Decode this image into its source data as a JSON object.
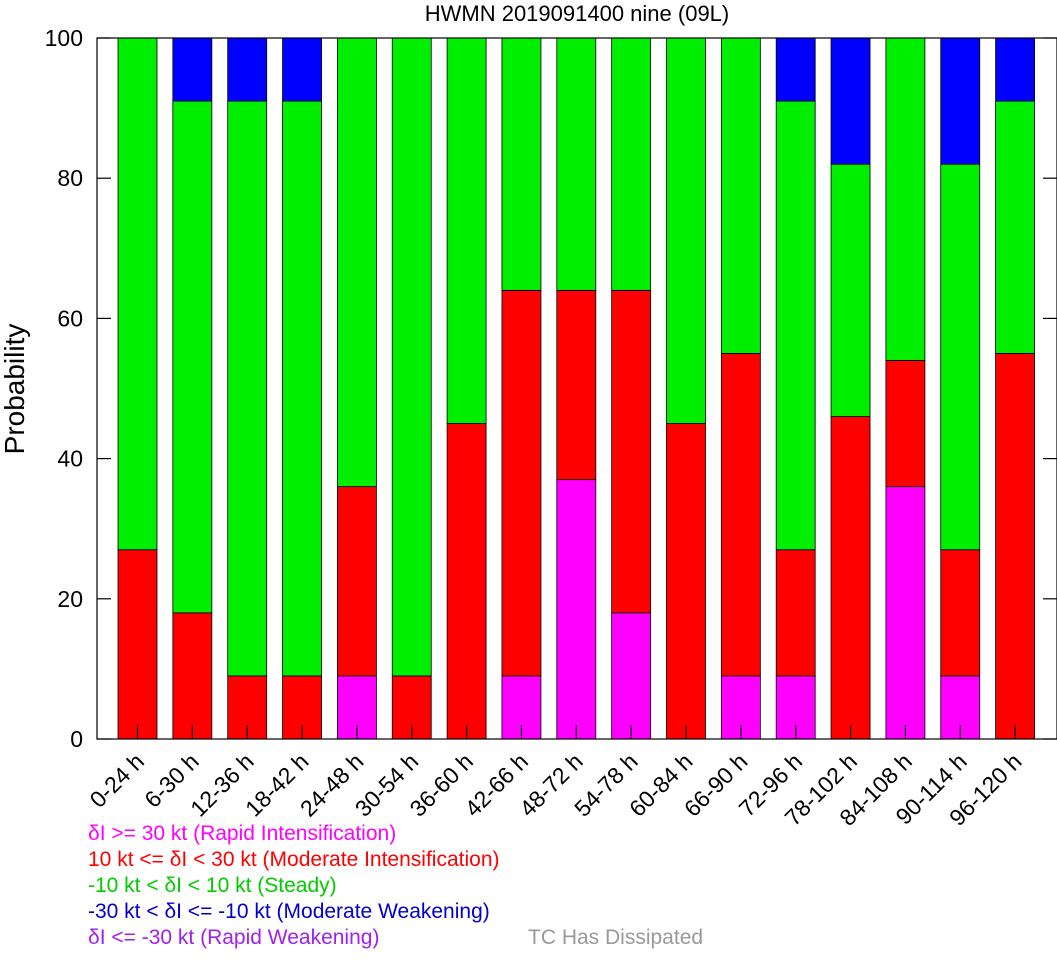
{
  "chart_data": {
    "type": "bar",
    "stacked": true,
    "title": "HWMN 2019091400 nine (09L)",
    "xlabel": "",
    "ylabel": "Probability",
    "ylim": [
      0,
      100
    ],
    "yticks": [
      0,
      20,
      40,
      60,
      80,
      100
    ],
    "grid": false,
    "categories": [
      "0-24 h",
      "6-30 h",
      "12-36 h",
      "18-42 h",
      "24-48 h",
      "30-54 h",
      "36-60 h",
      "42-66 h",
      "48-72 h",
      "54-78 h",
      "60-84 h",
      "66-90 h",
      "72-96 h",
      "78-102 h",
      "84-108 h",
      "90-114 h",
      "96-120 h"
    ],
    "series": [
      {
        "key": "ri",
        "color": "#ff00ff",
        "values": [
          0,
          0,
          0,
          0,
          9,
          0,
          0,
          9,
          37,
          18,
          0,
          9,
          9,
          0,
          36,
          9,
          0
        ]
      },
      {
        "key": "mi",
        "color": "#ff0000",
        "values": [
          27,
          18,
          9,
          9,
          27,
          9,
          45,
          55,
          27,
          46,
          45,
          46,
          18,
          46,
          18,
          18,
          55
        ]
      },
      {
        "key": "steady",
        "color": "#00ee00",
        "values": [
          73,
          73,
          82,
          82,
          64,
          91,
          55,
          36,
          36,
          36,
          55,
          45,
          64,
          36,
          46,
          55,
          36
        ]
      },
      {
        "key": "mw",
        "color": "#0000ff",
        "values": [
          0,
          9,
          9,
          9,
          0,
          0,
          0,
          0,
          0,
          0,
          0,
          0,
          9,
          18,
          0,
          18,
          9
        ]
      },
      {
        "key": "rw",
        "color": "#a020f0",
        "values": [
          0,
          0,
          0,
          0,
          0,
          0,
          0,
          0,
          0,
          0,
          0,
          0,
          0,
          0,
          0,
          0,
          0
        ]
      }
    ],
    "legend": {
      "placement": "bottom-left",
      "entries": [
        {
          "label": "δI >= 30 kt (Rapid Intensification)",
          "color": "#ff00ff"
        },
        {
          "label": "10 kt <= δI < 30 kt (Moderate Intensification)",
          "color": "#ff0000"
        },
        {
          "label": "-10 kt < δI < 10 kt (Steady)",
          "color": "#00cc00"
        },
        {
          "label": "-30 kt < δI <= -10 kt (Moderate Weakening)",
          "color": "#0000cc"
        },
        {
          "label": "δI <= -30 kt (Rapid Weakening)",
          "color": "#a020f0"
        }
      ],
      "dissipated_label": "TC Has Dissipated",
      "dissipated_color": "#999999"
    }
  }
}
